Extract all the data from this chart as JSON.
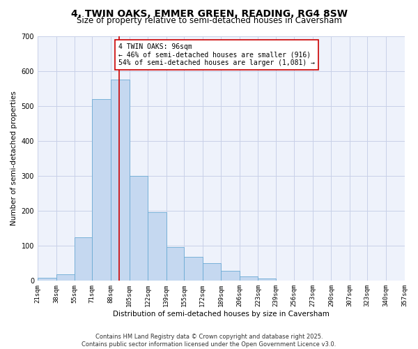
{
  "title": "4, TWIN OAKS, EMMER GREEN, READING, RG4 8SW",
  "subtitle": "Size of property relative to semi-detached houses in Caversham",
  "xlabel": "Distribution of semi-detached houses by size in Caversham",
  "ylabel": "Number of semi-detached properties",
  "bin_edges": [
    21,
    38,
    55,
    71,
    88,
    105,
    122,
    139,
    155,
    172,
    189,
    206,
    223,
    239,
    256,
    273,
    290,
    307,
    323,
    340,
    357
  ],
  "bar_counts": [
    8,
    18,
    125,
    520,
    575,
    300,
    197,
    97,
    68,
    50,
    28,
    12,
    7,
    0,
    0,
    0,
    0,
    0,
    0,
    0
  ],
  "property_size": 96,
  "annotation_title": "4 TWIN OAKS: 96sqm",
  "annotation_line1": "← 46% of semi-detached houses are smaller (916)",
  "annotation_line2": "54% of semi-detached houses are larger (1,081) →",
  "bar_color": "#c5d8f0",
  "bar_edge_color": "#6aaad4",
  "vline_color": "#cc0000",
  "annotation_box_color": "#cc0000",
  "background_color": "#eef2fb",
  "grid_color": "#c8d0e8",
  "ylim": [
    0,
    700
  ],
  "yticks": [
    0,
    100,
    200,
    300,
    400,
    500,
    600,
    700
  ],
  "tick_labels": [
    "21sqm",
    "38sqm",
    "55sqm",
    "71sqm",
    "88sqm",
    "105sqm",
    "122sqm",
    "139sqm",
    "155sqm",
    "172sqm",
    "189sqm",
    "206sqm",
    "223sqm",
    "239sqm",
    "256sqm",
    "273sqm",
    "290sqm",
    "307sqm",
    "323sqm",
    "340sqm",
    "357sqm"
  ],
  "footer_line1": "Contains HM Land Registry data © Crown copyright and database right 2025.",
  "footer_line2": "Contains public sector information licensed under the Open Government Licence v3.0.",
  "title_fontsize": 10,
  "subtitle_fontsize": 8.5,
  "axis_label_fontsize": 7.5,
  "tick_fontsize": 6.5,
  "annotation_fontsize": 7,
  "footer_fontsize": 6
}
